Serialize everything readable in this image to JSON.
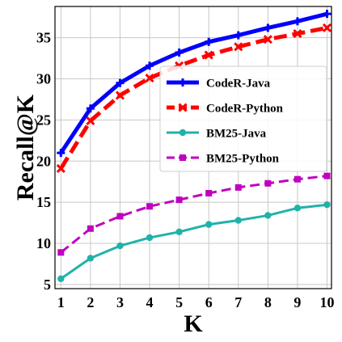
{
  "chart_data": {
    "type": "line",
    "title": "",
    "xlabel": "K",
    "ylabel": "Recall@K",
    "x": [
      1,
      2,
      3,
      4,
      5,
      6,
      7,
      8,
      9,
      10
    ],
    "xlim": [
      0.8,
      10.15
    ],
    "ylim": [
      4.5,
      38.8
    ],
    "xticks": [
      "1",
      "2",
      "3",
      "4",
      "5",
      "6",
      "7",
      "8",
      "9",
      "10"
    ],
    "yticks": [
      5,
      10,
      15,
      20,
      25,
      30,
      35
    ],
    "grid": true,
    "legend_position": "center-right",
    "series": [
      {
        "name": "CodeR-Java",
        "color": "#0000ff",
        "line_style": "solid",
        "marker": "plus",
        "values": [
          21.0,
          26.4,
          29.5,
          31.6,
          33.2,
          34.5,
          35.3,
          36.2,
          37.0,
          37.9
        ]
      },
      {
        "name": "CodeR-Python",
        "color": "#ff0000",
        "line_style": "dashed",
        "marker": "x",
        "values": [
          19.1,
          24.9,
          28.0,
          30.1,
          31.6,
          32.9,
          33.9,
          34.8,
          35.5,
          36.2
        ]
      },
      {
        "name": "BM25-Java",
        "color": "#20b2aa",
        "line_style": "solid",
        "marker": "circle",
        "values": [
          5.7,
          8.2,
          9.7,
          10.7,
          11.4,
          12.3,
          12.8,
          13.4,
          14.3,
          14.7
        ]
      },
      {
        "name": "BM25-Python",
        "color": "#c000c0",
        "line_style": "dashed",
        "marker": "square",
        "values": [
          8.9,
          11.8,
          13.3,
          14.5,
          15.3,
          16.1,
          16.8,
          17.3,
          17.8,
          18.2
        ]
      }
    ]
  }
}
